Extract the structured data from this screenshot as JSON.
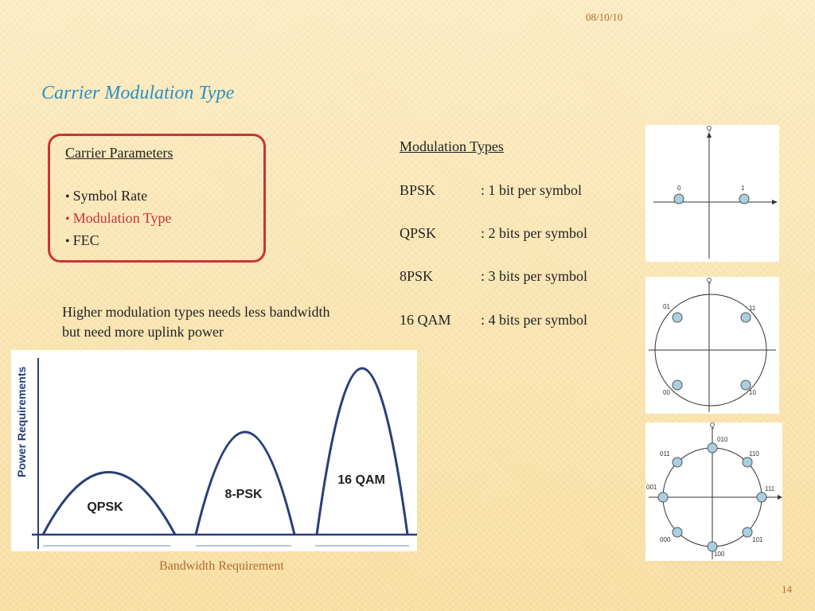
{
  "header": {
    "date": "08/10/10"
  },
  "title": "Carrier Modulation Type",
  "parameters": {
    "heading": "Carrier  Parameters",
    "items": [
      "Symbol Rate",
      "Modulation Type",
      "FEC"
    ]
  },
  "note": "Higher modulation types needs less bandwidth but need more uplink power",
  "modulation": {
    "heading": "Modulation Types",
    "rows": [
      {
        "name": "BPSK",
        "desc": ": 1 bit per symbol"
      },
      {
        "name": "QPSK",
        "desc": ": 2 bits per symbol"
      },
      {
        "name": "8PSK",
        "desc": ": 3 bits per symbol"
      },
      {
        "name": "16 QAM",
        "desc": ": 4 bits per symbol"
      }
    ]
  },
  "chart": {
    "ylabel": "Power Requirements",
    "xlabel": "Bandwidth Requirement",
    "curves": [
      "QPSK",
      "8-PSK",
      "16 QAM"
    ]
  },
  "constellations": {
    "bpsk": [
      "0",
      "1"
    ],
    "qpsk": [
      "01",
      "11",
      "00",
      "10"
    ],
    "psk8": [
      "010",
      "110",
      "011",
      "111",
      "001",
      "000",
      "101",
      "100"
    ],
    "axis_label": "Q"
  },
  "footer": {
    "page": "14"
  }
}
